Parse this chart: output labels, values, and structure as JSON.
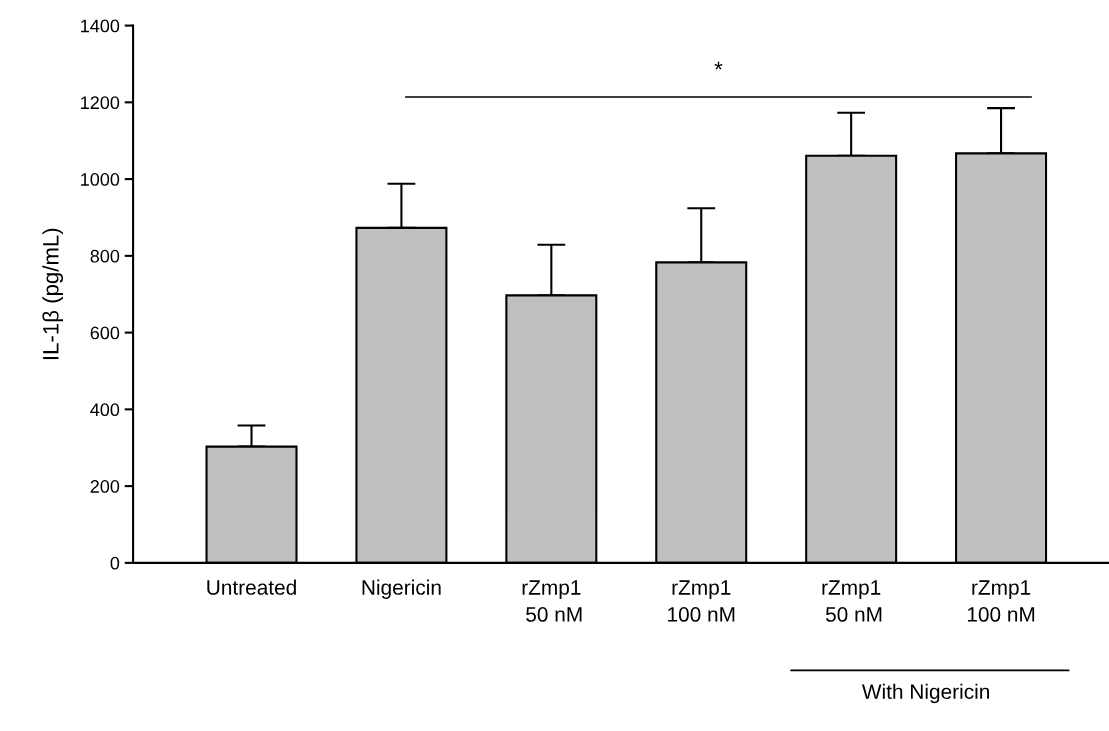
{
  "chart_data": {
    "type": "bar",
    "ylabel": "IL-1β (pg/mL)",
    "categories": [
      "Untreated",
      "Nigericin",
      "rZmp1\n 50 nM",
      "rZmp1\n100 nM",
      "rZmp1\n 50 nM",
      "rZmp1\n100 nM"
    ],
    "values": [
      303,
      873,
      697,
      783,
      1061,
      1067
    ],
    "errors": [
      [
        303,
        358
      ],
      [
        873,
        988
      ],
      [
        697,
        829
      ],
      [
        783,
        924
      ],
      [
        1061,
        1173
      ],
      [
        1067,
        1185
      ]
    ],
    "color": "#c0c0c0",
    "ylim": [
      0,
      1400
    ],
    "yticks": [
      0,
      200,
      400,
      600,
      800,
      1000,
      1200,
      1400
    ],
    "grid": false,
    "ref_lines": [
      {
        "axis": "y",
        "value": 1214,
        "label": "*",
        "color": "#000000"
      }
    ],
    "annotations": [
      "With Nigericin"
    ]
  }
}
